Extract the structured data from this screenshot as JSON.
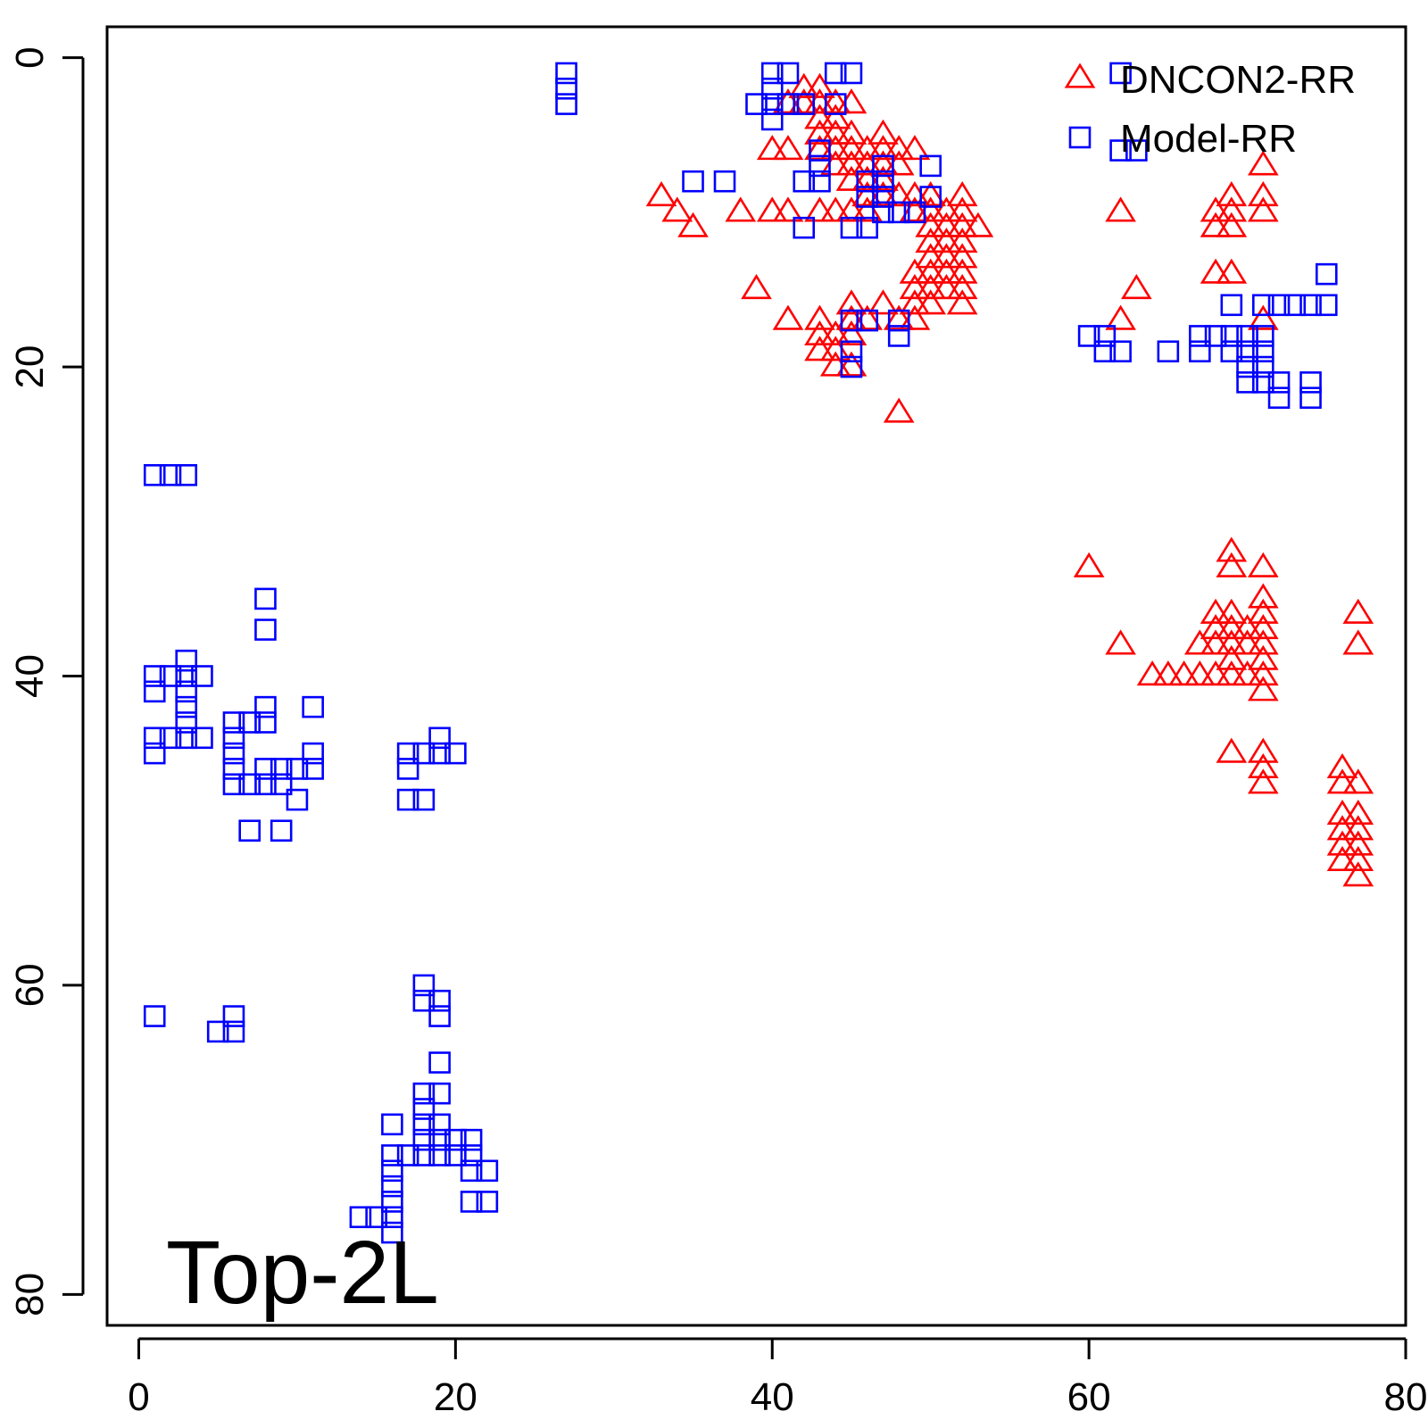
{
  "chart_data": {
    "type": "scatter",
    "title": "",
    "xlabel": "",
    "ylabel": "",
    "xlim": [
      -2,
      80
    ],
    "ylim": [
      82,
      -2
    ],
    "y_reversed": true,
    "xticks": [
      0,
      20,
      40,
      60,
      80
    ],
    "yticks": [
      0,
      20,
      40,
      60,
      80
    ],
    "xtick_labels": [
      "0",
      "20",
      "40",
      "60",
      "80"
    ],
    "ytick_labels": [
      "0",
      "20",
      "40",
      "60",
      "80"
    ],
    "grid": false,
    "annotation": "Top-2L",
    "legend": {
      "position": "top-right"
    },
    "series": [
      {
        "name": "DNCON2-RR",
        "marker": "triangle",
        "color": "#ff0000",
        "points": [
          [
            33,
            9
          ],
          [
            34,
            10
          ],
          [
            35,
            11
          ],
          [
            38,
            10
          ],
          [
            39,
            15
          ],
          [
            40,
            6
          ],
          [
            40,
            10
          ],
          [
            41,
            6
          ],
          [
            41,
            10
          ],
          [
            41,
            17
          ],
          [
            41,
            3
          ],
          [
            42,
            2
          ],
          [
            42,
            3
          ],
          [
            43,
            2
          ],
          [
            43,
            3
          ],
          [
            43,
            4
          ],
          [
            43,
            5
          ],
          [
            43,
            6
          ],
          [
            43,
            10
          ],
          [
            43,
            17
          ],
          [
            43,
            18
          ],
          [
            43,
            19
          ],
          [
            44,
            3
          ],
          [
            44,
            4
          ],
          [
            44,
            5
          ],
          [
            44,
            6
          ],
          [
            44,
            7
          ],
          [
            44,
            10
          ],
          [
            44,
            18
          ],
          [
            44,
            19
          ],
          [
            44,
            20
          ],
          [
            45,
            3
          ],
          [
            45,
            5
          ],
          [
            45,
            6
          ],
          [
            45,
            7
          ],
          [
            45,
            8
          ],
          [
            45,
            10
          ],
          [
            45,
            16
          ],
          [
            45,
            17
          ],
          [
            45,
            18
          ],
          [
            45,
            20
          ],
          [
            46,
            6
          ],
          [
            46,
            7
          ],
          [
            46,
            8
          ],
          [
            46,
            9
          ],
          [
            46,
            10
          ],
          [
            46,
            17
          ],
          [
            47,
            5
          ],
          [
            47,
            6
          ],
          [
            47,
            7
          ],
          [
            47,
            8
          ],
          [
            47,
            9
          ],
          [
            47,
            16
          ],
          [
            48,
            6
          ],
          [
            48,
            7
          ],
          [
            48,
            9
          ],
          [
            48,
            17
          ],
          [
            48,
            23
          ],
          [
            49,
            6
          ],
          [
            49,
            9
          ],
          [
            49,
            10
          ],
          [
            49,
            14
          ],
          [
            49,
            15
          ],
          [
            49,
            16
          ],
          [
            49,
            17
          ],
          [
            50,
            9
          ],
          [
            50,
            10
          ],
          [
            50,
            11
          ],
          [
            50,
            12
          ],
          [
            50,
            13
          ],
          [
            50,
            14
          ],
          [
            50,
            15
          ],
          [
            50,
            16
          ],
          [
            51,
            10
          ],
          [
            51,
            11
          ],
          [
            51,
            12
          ],
          [
            51,
            13
          ],
          [
            51,
            14
          ],
          [
            51,
            15
          ],
          [
            52,
            9
          ],
          [
            52,
            10
          ],
          [
            52,
            11
          ],
          [
            52,
            12
          ],
          [
            52,
            13
          ],
          [
            52,
            14
          ],
          [
            52,
            15
          ],
          [
            52,
            16
          ],
          [
            53,
            11
          ],
          [
            60,
            33
          ],
          [
            62,
            10
          ],
          [
            62,
            17
          ],
          [
            62,
            38
          ],
          [
            63,
            15
          ],
          [
            64,
            40
          ],
          [
            65,
            40
          ],
          [
            66,
            40
          ],
          [
            67,
            38
          ],
          [
            67,
            40
          ],
          [
            68,
            10
          ],
          [
            68,
            11
          ],
          [
            68,
            14
          ],
          [
            68,
            36
          ],
          [
            68,
            37
          ],
          [
            68,
            38
          ],
          [
            68,
            40
          ],
          [
            69,
            9
          ],
          [
            69,
            10
          ],
          [
            69,
            11
          ],
          [
            69,
            14
          ],
          [
            69,
            32
          ],
          [
            69,
            33
          ],
          [
            69,
            36
          ],
          [
            69,
            37
          ],
          [
            69,
            38
          ],
          [
            69,
            39
          ],
          [
            69,
            40
          ],
          [
            69,
            45
          ],
          [
            70,
            37
          ],
          [
            70,
            38
          ],
          [
            70,
            40
          ],
          [
            71,
            7
          ],
          [
            71,
            9
          ],
          [
            71,
            10
          ],
          [
            71,
            17
          ],
          [
            71,
            33
          ],
          [
            71,
            35
          ],
          [
            71,
            36
          ],
          [
            71,
            37
          ],
          [
            71,
            38
          ],
          [
            71,
            39
          ],
          [
            71,
            40
          ],
          [
            71,
            41
          ],
          [
            71,
            45
          ],
          [
            71,
            46
          ],
          [
            71,
            47
          ],
          [
            76,
            46
          ],
          [
            76,
            47
          ],
          [
            76,
            49
          ],
          [
            76,
            50
          ],
          [
            76,
            51
          ],
          [
            76,
            52
          ],
          [
            77,
            36
          ],
          [
            77,
            38
          ],
          [
            77,
            47
          ],
          [
            77,
            49
          ],
          [
            77,
            50
          ],
          [
            77,
            51
          ],
          [
            77,
            52
          ],
          [
            77,
            53
          ]
        ]
      },
      {
        "name": "Model-RR",
        "marker": "square",
        "color": "#0000ff",
        "points": [
          [
            1,
            27
          ],
          [
            2,
            27
          ],
          [
            3,
            27
          ],
          [
            1,
            40
          ],
          [
            1,
            41
          ],
          [
            1,
            44
          ],
          [
            1,
            45
          ],
          [
            2,
            40
          ],
          [
            2,
            44
          ],
          [
            3,
            39
          ],
          [
            3,
            40
          ],
          [
            3,
            41
          ],
          [
            3,
            42
          ],
          [
            3,
            43
          ],
          [
            3,
            44
          ],
          [
            4,
            40
          ],
          [
            4,
            44
          ],
          [
            6,
            43
          ],
          [
            6,
            44
          ],
          [
            6,
            45
          ],
          [
            6,
            46
          ],
          [
            6,
            47
          ],
          [
            7,
            43
          ],
          [
            7,
            47
          ],
          [
            7,
            50
          ],
          [
            8,
            35
          ],
          [
            8,
            37
          ],
          [
            8,
            42
          ],
          [
            8,
            43
          ],
          [
            8,
            46
          ],
          [
            8,
            47
          ],
          [
            9,
            46
          ],
          [
            9,
            47
          ],
          [
            9,
            50
          ],
          [
            10,
            46
          ],
          [
            10,
            48
          ],
          [
            11,
            42
          ],
          [
            11,
            45
          ],
          [
            11,
            46
          ],
          [
            17,
            45
          ],
          [
            17,
            46
          ],
          [
            17,
            48
          ],
          [
            18,
            45
          ],
          [
            18,
            48
          ],
          [
            19,
            44
          ],
          [
            19,
            45
          ],
          [
            20,
            45
          ],
          [
            1,
            62
          ],
          [
            5,
            63
          ],
          [
            6,
            62
          ],
          [
            6,
            63
          ],
          [
            18,
            60
          ],
          [
            18,
            61
          ],
          [
            19,
            61
          ],
          [
            19,
            62
          ],
          [
            19,
            65
          ],
          [
            18,
            67
          ],
          [
            18,
            68
          ],
          [
            18,
            69
          ],
          [
            18,
            70
          ],
          [
            18,
            71
          ],
          [
            19,
            67
          ],
          [
            19,
            69
          ],
          [
            19,
            70
          ],
          [
            19,
            71
          ],
          [
            16,
            69
          ],
          [
            16,
            71
          ],
          [
            16,
            72
          ],
          [
            16,
            73
          ],
          [
            16,
            74
          ],
          [
            16,
            75
          ],
          [
            16,
            76
          ],
          [
            17,
            71
          ],
          [
            20,
            70
          ],
          [
            20,
            71
          ],
          [
            21,
            70
          ],
          [
            21,
            71
          ],
          [
            21,
            72
          ],
          [
            21,
            74
          ],
          [
            22,
            72
          ],
          [
            22,
            74
          ],
          [
            14,
            75
          ],
          [
            15,
            75
          ],
          [
            27,
            1
          ],
          [
            27,
            2
          ],
          [
            27,
            3
          ],
          [
            35,
            8
          ],
          [
            37,
            8
          ],
          [
            39,
            3
          ],
          [
            40,
            1
          ],
          [
            40,
            2
          ],
          [
            40,
            3
          ],
          [
            40,
            4
          ],
          [
            41,
            1
          ],
          [
            41,
            3
          ],
          [
            42,
            3
          ],
          [
            42,
            8
          ],
          [
            42,
            11
          ],
          [
            43,
            6
          ],
          [
            43,
            7
          ],
          [
            43,
            8
          ],
          [
            44,
            1
          ],
          [
            44,
            3
          ],
          [
            45,
            1
          ],
          [
            45,
            11
          ],
          [
            45,
            17
          ],
          [
            45,
            19
          ],
          [
            45,
            20
          ],
          [
            46,
            8
          ],
          [
            46,
            9
          ],
          [
            46,
            11
          ],
          [
            46,
            17
          ],
          [
            47,
            7
          ],
          [
            47,
            8
          ],
          [
            47,
            9
          ],
          [
            47,
            10
          ],
          [
            48,
            10
          ],
          [
            48,
            17
          ],
          [
            48,
            18
          ],
          [
            49,
            10
          ],
          [
            50,
            7
          ],
          [
            50,
            9
          ],
          [
            60,
            18
          ],
          [
            61,
            18
          ],
          [
            61,
            19
          ],
          [
            62,
            1
          ],
          [
            62,
            6
          ],
          [
            62,
            19
          ],
          [
            63,
            6
          ],
          [
            65,
            19
          ],
          [
            67,
            18
          ],
          [
            67,
            19
          ],
          [
            68,
            18
          ],
          [
            69,
            16
          ],
          [
            69,
            18
          ],
          [
            69,
            19
          ],
          [
            70,
            18
          ],
          [
            70,
            19
          ],
          [
            70,
            20
          ],
          [
            70,
            21
          ],
          [
            71,
            16
          ],
          [
            71,
            18
          ],
          [
            71,
            19
          ],
          [
            71,
            20
          ],
          [
            71,
            21
          ],
          [
            72,
            16
          ],
          [
            72,
            21
          ],
          [
            72,
            22
          ],
          [
            73,
            16
          ],
          [
            74,
            16
          ],
          [
            74,
            21
          ],
          [
            74,
            22
          ],
          [
            75,
            14
          ],
          [
            75,
            16
          ]
        ]
      }
    ]
  }
}
